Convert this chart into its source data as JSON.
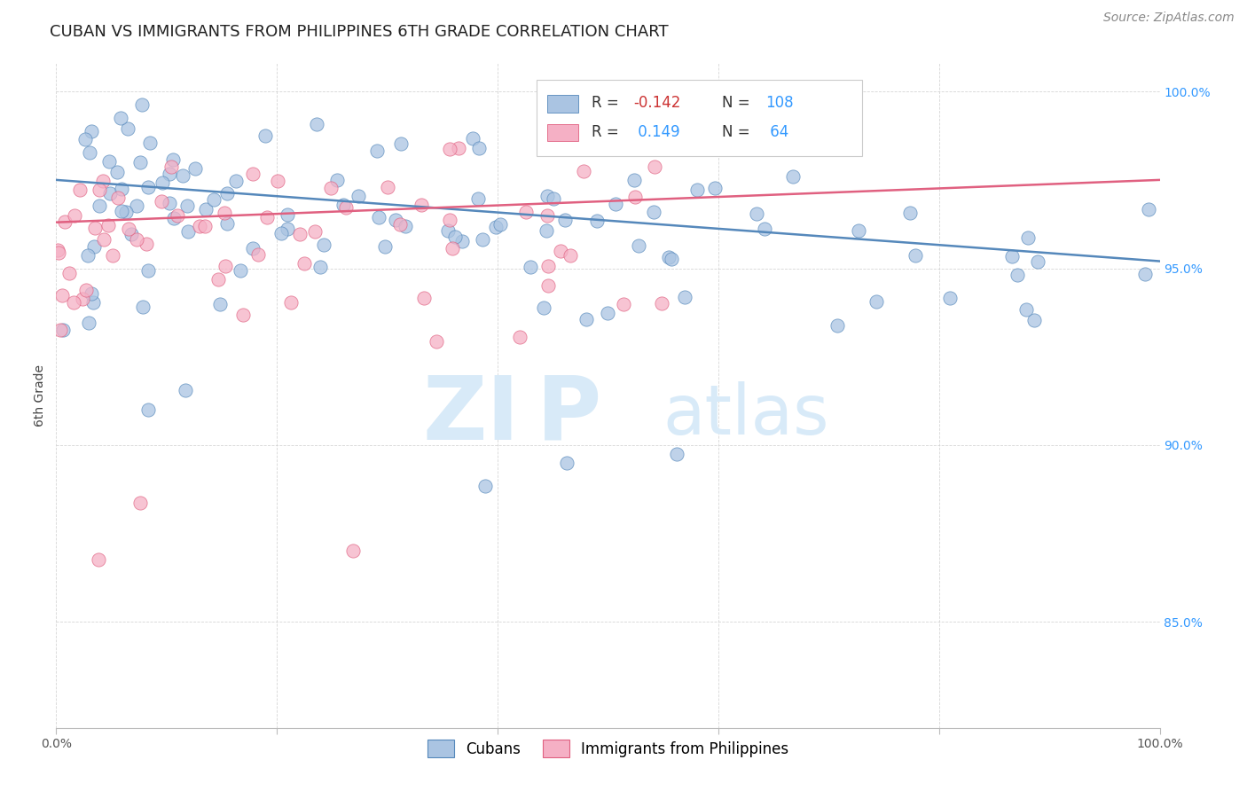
{
  "title": "CUBAN VS IMMIGRANTS FROM PHILIPPINES 6TH GRADE CORRELATION CHART",
  "source": "Source: ZipAtlas.com",
  "ylabel": "6th Grade",
  "legend_label_1": "Cubans",
  "legend_label_2": "Immigrants from Philippines",
  "R1": -0.142,
  "N1": 108,
  "R2": 0.149,
  "N2": 64,
  "x_min": 0.0,
  "x_max": 1.0,
  "y_min": 0.82,
  "y_max": 1.008,
  "ytick_labels": [
    "85.0%",
    "90.0%",
    "95.0%",
    "100.0%"
  ],
  "ytick_values": [
    0.85,
    0.9,
    0.95,
    1.0
  ],
  "color_blue": "#aac4e2",
  "color_pink": "#f5b0c5",
  "line_color_blue": "#5588bb",
  "line_color_pink": "#e06080",
  "title_fontsize": 13,
  "source_fontsize": 10,
  "axis_label_fontsize": 10,
  "tick_fontsize": 10,
  "legend_fontsize": 12,
  "watermark_color": "#d8eaf8",
  "background_color": "#ffffff",
  "blue_line_y0": 0.975,
  "blue_line_y1": 0.952,
  "pink_line_y0": 0.963,
  "pink_line_y1": 0.975
}
